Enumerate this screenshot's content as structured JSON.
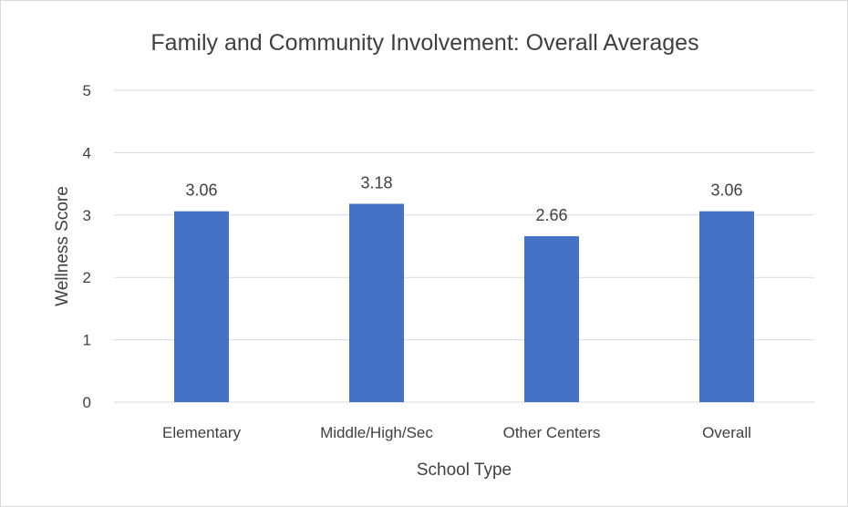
{
  "chart_data": {
    "type": "bar",
    "title": "Family and Community Involvement: Overall Averages",
    "xlabel": "School Type",
    "ylabel": "Wellness Score",
    "categories": [
      "Elementary",
      "Middle/High/Sec",
      "Other Centers",
      "Overall"
    ],
    "series": [
      {
        "values": [
          3.06,
          3.18,
          2.66,
          3.06
        ],
        "color": "#4472C4"
      }
    ],
    "data_labels": [
      "3.06",
      "3.18",
      "2.66",
      "3.06"
    ],
    "y_ticks": [
      "0",
      "1",
      "2",
      "3",
      "4",
      "5"
    ],
    "ylim": [
      0,
      5
    ],
    "grid": true,
    "legend": "none"
  }
}
